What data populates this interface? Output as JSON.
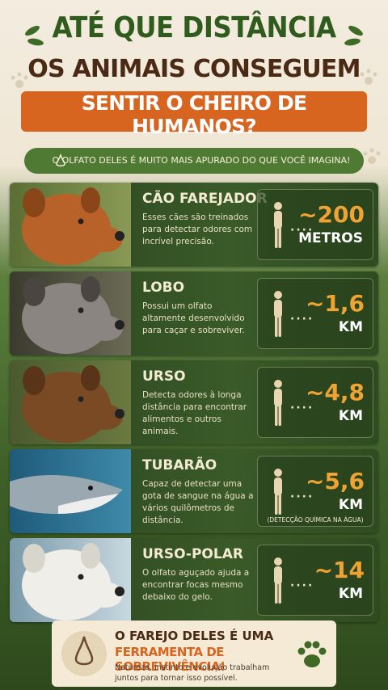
{
  "header": {
    "title_line1": "ATÉ QUE DISTÂNCIA",
    "title_line2": "OS ANIMAIS CONSEGUEM",
    "banner": "SENTIR O CHEIRO DE HUMANOS?",
    "subtitle": "O OLFATO DELES É MUITO MAIS APURADO DO QUE VOCÊ IMAGINA!"
  },
  "animals": [
    {
      "name": "CÃO FAREJADOR",
      "description": "Esses cães são treinados para detectar odores com incrível precisão.",
      "distance": "~200",
      "unit": "METROS"
    },
    {
      "name": "LOBO",
      "description": "Possui um olfato altamente desenvolvido para caçar e sobreviver.",
      "distance": "~1,6",
      "unit": "KM"
    },
    {
      "name": "URSO",
      "description": "Detecta odores à longa distância para encontrar alimentos e outros animais.",
      "distance": "~4,8",
      "unit": "KM"
    },
    {
      "name": "TUBARÃO",
      "description": "Capaz de detectar uma gota de sangue na água a vários quilômetros de distância.",
      "distance": "~5,6",
      "unit": "KM",
      "note": "(DETECÇÃO QUÍMICA NA ÁGUA)"
    },
    {
      "name": "URSO-POLAR",
      "description": "O olfato aguçado ajuda a encontrar focas mesmo debaixo do gelo.",
      "distance": "~14",
      "unit": "KM"
    }
  ],
  "footer": {
    "line1": "O FAREJO DELES É UMA",
    "line2": "FERRAMENTA DE SOBREVIVÊNCIA!",
    "text": "Natureza, instinto e evolução trabalham juntos para tornar isso possível."
  }
}
